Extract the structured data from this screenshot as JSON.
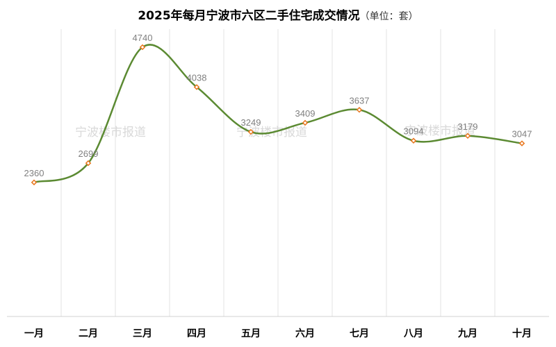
{
  "chart_data": {
    "type": "line",
    "title": "2025年每月宁波市六区二手住宅成交情况",
    "unit_note": "（单位：套）",
    "categories": [
      "一月",
      "二月",
      "三月",
      "四月",
      "五月",
      "六月",
      "七月",
      "八月",
      "九月",
      "十月"
    ],
    "values": [
      2360,
      2699,
      4740,
      4038,
      3249,
      3409,
      3637,
      3094,
      3179,
      3047
    ],
    "data_labels": [
      "2360",
      "2699",
      "4740",
      "4038",
      "3249",
      "3409",
      "3637",
      "3094",
      "3179",
      "3047"
    ],
    "line_color": "#5b8a32",
    "marker_color": "#e8761c",
    "grid": "vertical",
    "legend": "none",
    "smooth": true,
    "watermarks": [
      "宁波楼市报道",
      "宁波楼市报道",
      "宁波楼市报道"
    ]
  }
}
